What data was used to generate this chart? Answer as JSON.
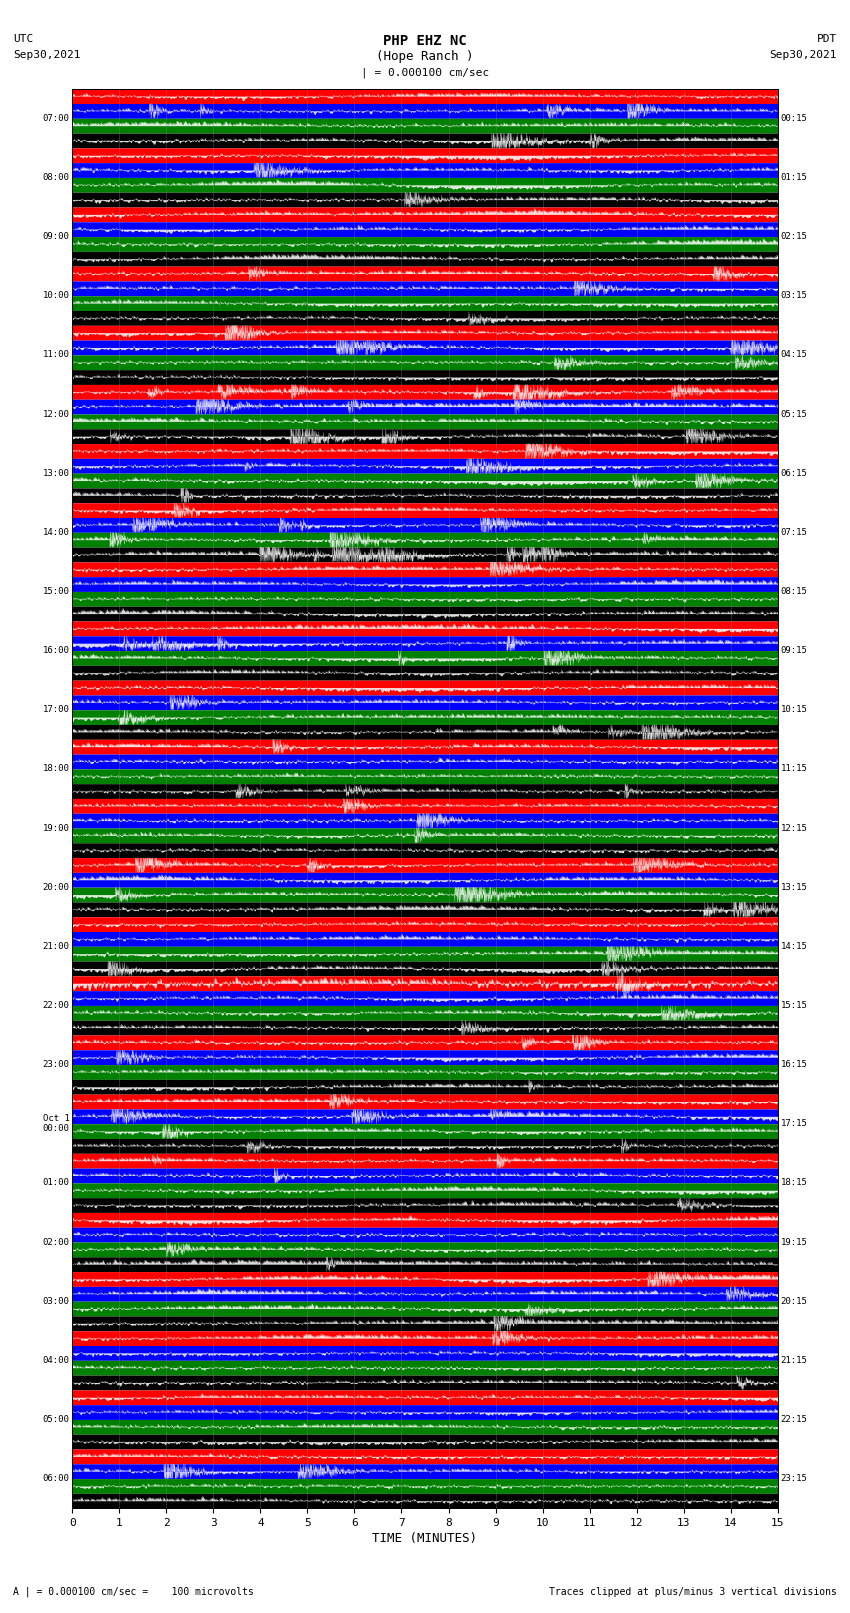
{
  "title_line1": "PHP EHZ NC",
  "title_line2": "(Hope Ranch )",
  "title_scale": "| = 0.000100 cm/sec",
  "utc_label": "UTC",
  "utc_date": "Sep30,2021",
  "pdt_label": "PDT",
  "pdt_date": "Sep30,2021",
  "left_times_utc": [
    "07:00",
    "08:00",
    "09:00",
    "10:00",
    "11:00",
    "12:00",
    "13:00",
    "14:00",
    "15:00",
    "16:00",
    "17:00",
    "18:00",
    "19:00",
    "20:00",
    "21:00",
    "22:00",
    "23:00",
    "Oct 1\n00:00",
    "01:00",
    "02:00",
    "03:00",
    "04:00",
    "05:00",
    "06:00"
  ],
  "right_times_pdt": [
    "00:15",
    "01:15",
    "02:15",
    "03:15",
    "04:15",
    "05:15",
    "06:15",
    "07:15",
    "08:15",
    "09:15",
    "10:15",
    "11:15",
    "12:15",
    "13:15",
    "14:15",
    "15:15",
    "16:15",
    "17:15",
    "18:15",
    "19:15",
    "20:15",
    "21:15",
    "22:15",
    "23:15"
  ],
  "xlabel": "TIME (MINUTES)",
  "x_ticks": [
    0,
    1,
    2,
    3,
    4,
    5,
    6,
    7,
    8,
    9,
    10,
    11,
    12,
    13,
    14,
    15
  ],
  "footer_left": "A | = 0.000100 cm/sec =    100 microvolts",
  "footer_right": "Traces clipped at plus/minus 3 vertical divisions",
  "n_rows": 24,
  "n_traces_per_row": 4,
  "bg_color": "#ffffff",
  "trace_color_cycle": [
    "#ff0000",
    "#0000ff",
    "#008000",
    "#000000"
  ],
  "trace_bg_cycle": [
    "#ff0000",
    "#0000ff",
    "#008000",
    "#000000"
  ],
  "fig_width": 8.5,
  "fig_height": 16.13,
  "large_event_rows": [
    5,
    6,
    7
  ],
  "large_event2_rows": [
    15
  ]
}
